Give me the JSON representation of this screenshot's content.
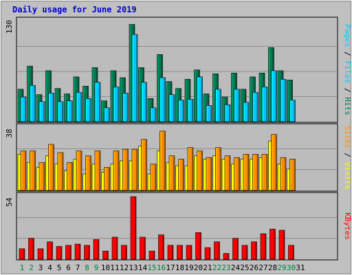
{
  "title": "Daily usage for June 2019",
  "colors": {
    "background": "#c0c0c0",
    "panel": "#bcbcbc",
    "grid": "#8c8c8c",
    "hits": "#007850",
    "files": "#00c8ff",
    "visits": "#ffff00",
    "sites": "#ff8c00",
    "kbytes": "#ff0000",
    "title": "#0000c8",
    "weekend_day": "#008040",
    "weekday": "#000000"
  },
  "chart_data": [
    {
      "type": "bar",
      "panel": "top",
      "max_label": "130",
      "ylim": [
        0,
        130
      ],
      "right_label": [
        "Pages",
        "/",
        "Files",
        "/",
        "Hits"
      ],
      "categories": [
        "1",
        "2",
        "3",
        "4",
        "5",
        "6",
        "7",
        "8",
        "9",
        "10",
        "11",
        "12",
        "13",
        "14",
        "15",
        "16",
        "17",
        "18",
        "19",
        "20",
        "21",
        "22",
        "23",
        "24",
        "25",
        "26",
        "27",
        "28",
        "29",
        "30",
        "31"
      ],
      "series": [
        {
          "name": "Hits",
          "values": [
            42,
            72,
            35,
            66,
            43,
            36,
            58,
            46,
            70,
            27,
            66,
            57,
            126,
            70,
            30,
            87,
            52,
            43,
            55,
            67,
            36,
            62,
            32,
            63,
            42,
            58,
            63,
            96,
            66,
            54,
            0
          ]
        },
        {
          "name": "Files",
          "values": [
            32,
            47,
            26,
            37,
            26,
            27,
            38,
            30,
            51,
            18,
            45,
            37,
            113,
            51,
            18,
            57,
            35,
            28,
            29,
            58,
            21,
            42,
            22,
            42,
            25,
            38,
            45,
            66,
            55,
            28,
            0
          ]
        }
      ]
    },
    {
      "type": "bar",
      "panel": "middle",
      "max_label": "38",
      "ylim": [
        0,
        38
      ],
      "right_label": [
        "Sites",
        "/",
        "Visits"
      ],
      "categories": [
        "1",
        "2",
        "3",
        "4",
        "5",
        "6",
        "7",
        "8",
        "9",
        "10",
        "11",
        "12",
        "13",
        "14",
        "15",
        "16",
        "17",
        "18",
        "19",
        "20",
        "21",
        "22",
        "23",
        "24",
        "25",
        "26",
        "27",
        "28",
        "29",
        "30",
        "31"
      ],
      "series": [
        {
          "name": "Visits",
          "values": [
            22,
            17,
            14,
            21,
            16,
            12,
            19,
            10,
            16,
            11,
            16,
            18,
            18,
            27,
            10,
            24,
            17,
            15,
            15,
            21,
            19,
            21,
            19,
            16,
            19,
            19,
            20,
            30,
            16,
            13,
            0
          ]
        },
        {
          "name": "Sites",
          "values": [
            24,
            24,
            17,
            28,
            23,
            17,
            24,
            21,
            24,
            14,
            24,
            25,
            25,
            31,
            16,
            36,
            21,
            19,
            26,
            24,
            20,
            26,
            21,
            20,
            22,
            22,
            22,
            34,
            20,
            19,
            0
          ]
        }
      ]
    },
    {
      "type": "bar",
      "panel": "bottom",
      "max_label": "54",
      "ylim": [
        0,
        54
      ],
      "right_label": [
        "KBytes"
      ],
      "categories": [
        "1",
        "2",
        "3",
        "4",
        "5",
        "6",
        "7",
        "8",
        "9",
        "10",
        "11",
        "12",
        "13",
        "14",
        "15",
        "16",
        "17",
        "18",
        "19",
        "20",
        "21",
        "22",
        "23",
        "24",
        "25",
        "26",
        "27",
        "28",
        "29",
        "30",
        "31"
      ],
      "series": [
        {
          "name": "KBytes",
          "values": [
            9,
            18,
            9,
            15,
            11,
            12,
            13,
            12,
            17,
            7,
            19,
            12,
            54,
            19,
            7,
            21,
            12,
            12,
            12,
            23,
            10,
            15,
            5,
            18,
            12,
            15,
            22,
            26,
            25,
            12,
            0
          ]
        }
      ]
    }
  ],
  "x_labels": [
    {
      "label": "1",
      "weekend": true
    },
    {
      "label": "2",
      "weekend": true
    },
    {
      "label": "3",
      "weekend": false
    },
    {
      "label": "4",
      "weekend": false
    },
    {
      "label": "5",
      "weekend": false
    },
    {
      "label": "6",
      "weekend": false
    },
    {
      "label": "7",
      "weekend": false
    },
    {
      "label": "8",
      "weekend": true
    },
    {
      "label": "9",
      "weekend": true
    },
    {
      "label": "10",
      "weekend": false
    },
    {
      "label": "11",
      "weekend": false
    },
    {
      "label": "12",
      "weekend": false
    },
    {
      "label": "13",
      "weekend": false
    },
    {
      "label": "14",
      "weekend": false
    },
    {
      "label": "15",
      "weekend": true
    },
    {
      "label": "16",
      "weekend": true
    },
    {
      "label": "17",
      "weekend": false
    },
    {
      "label": "18",
      "weekend": false
    },
    {
      "label": "19",
      "weekend": false
    },
    {
      "label": "20",
      "weekend": false
    },
    {
      "label": "21",
      "weekend": false
    },
    {
      "label": "22",
      "weekend": true
    },
    {
      "label": "23",
      "weekend": true
    },
    {
      "label": "24",
      "weekend": false
    },
    {
      "label": "25",
      "weekend": false
    },
    {
      "label": "26",
      "weekend": false
    },
    {
      "label": "27",
      "weekend": false
    },
    {
      "label": "28",
      "weekend": false
    },
    {
      "label": "29",
      "weekend": true
    },
    {
      "label": "30",
      "weekend": true
    },
    {
      "label": "31",
      "weekend": false
    }
  ]
}
